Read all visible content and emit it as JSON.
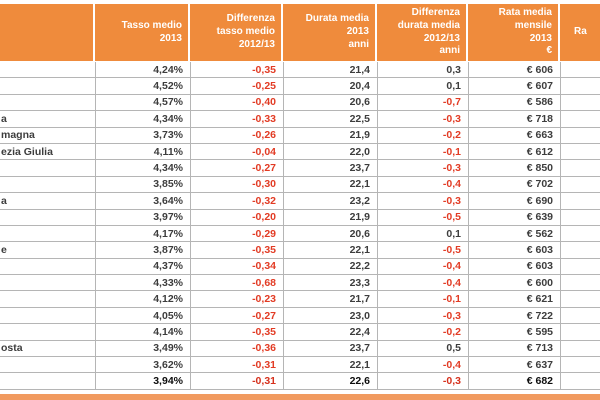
{
  "accent_colors": {
    "header_orange": "#ef8b3c",
    "negative_red": "#e23b24",
    "grid_gray": "#b5b5b5"
  },
  "table": {
    "headers": {
      "region": "",
      "tasso": "Tasso medio\n2013",
      "diff_tasso": "Differenza\ntasso medio\n2012/13",
      "durata": "Durata media\n2013\nanni",
      "diff_durata": "Differenza\ndurata media\n2012/13\nanni",
      "rata": "Rata media\nmensile\n2013\n€",
      "last_partial": "Ra"
    },
    "rows": [
      {
        "region": "",
        "tasso": "4,24%",
        "diff_tasso": "-0,35",
        "durata": "21,4",
        "diff_durata": "0,3",
        "rata": "€ 606"
      },
      {
        "region": "",
        "tasso": "4,52%",
        "diff_tasso": "-0,25",
        "durata": "20,4",
        "diff_durata": "0,1",
        "rata": "€ 607"
      },
      {
        "region": "",
        "tasso": "4,57%",
        "diff_tasso": "-0,40",
        "durata": "20,6",
        "diff_durata": "-0,7",
        "rata": "€ 586"
      },
      {
        "region": "a",
        "tasso": "4,34%",
        "diff_tasso": "-0,33",
        "durata": "22,5",
        "diff_durata": "-0,3",
        "rata": "€ 718"
      },
      {
        "region": "magna",
        "tasso": "3,73%",
        "diff_tasso": "-0,26",
        "durata": "21,9",
        "diff_durata": "-0,2",
        "rata": "€ 663"
      },
      {
        "region": "ezia Giulia",
        "tasso": "4,11%",
        "diff_tasso": "-0,04",
        "durata": "22,0",
        "diff_durata": "-0,1",
        "rata": "€ 612"
      },
      {
        "region": "",
        "tasso": "4,34%",
        "diff_tasso": "-0,27",
        "durata": "23,7",
        "diff_durata": "-0,3",
        "rata": "€ 850"
      },
      {
        "region": "",
        "tasso": "3,85%",
        "diff_tasso": "-0,30",
        "durata": "22,1",
        "diff_durata": "-0,4",
        "rata": "€ 702"
      },
      {
        "region": "a",
        "tasso": "3,64%",
        "diff_tasso": "-0,32",
        "durata": "23,2",
        "diff_durata": "-0,3",
        "rata": "€ 690"
      },
      {
        "region": "",
        "tasso": "3,97%",
        "diff_tasso": "-0,20",
        "durata": "21,9",
        "diff_durata": "-0,5",
        "rata": "€ 639"
      },
      {
        "region": "",
        "tasso": "4,17%",
        "diff_tasso": "-0,29",
        "durata": "20,6",
        "diff_durata": "0,1",
        "rata": "€ 562"
      },
      {
        "region": "e",
        "tasso": "3,87%",
        "diff_tasso": "-0,35",
        "durata": "22,1",
        "diff_durata": "-0,5",
        "rata": "€ 603"
      },
      {
        "region": "",
        "tasso": "4,37%",
        "diff_tasso": "-0,34",
        "durata": "22,2",
        "diff_durata": "-0,4",
        "rata": "€ 603"
      },
      {
        "region": "",
        "tasso": "4,33%",
        "diff_tasso": "-0,68",
        "durata": "23,3",
        "diff_durata": "-0,4",
        "rata": "€ 600"
      },
      {
        "region": "",
        "tasso": "4,12%",
        "diff_tasso": "-0,23",
        "durata": "21,7",
        "diff_durata": "-0,1",
        "rata": "€ 621"
      },
      {
        "region": "",
        "tasso": "4,05%",
        "diff_tasso": "-0,27",
        "durata": "23,0",
        "diff_durata": "-0,3",
        "rata": "€ 722"
      },
      {
        "region": "",
        "tasso": "4,14%",
        "diff_tasso": "-0,35",
        "durata": "22,4",
        "diff_durata": "-0,2",
        "rata": "€ 595"
      },
      {
        "region": "osta",
        "tasso": "3,49%",
        "diff_tasso": "-0,36",
        "durata": "23,7",
        "diff_durata": "0,5",
        "rata": "€ 713"
      },
      {
        "region": "",
        "tasso": "3,62%",
        "diff_tasso": "-0,31",
        "durata": "22,1",
        "diff_durata": "-0,4",
        "rata": "€ 637"
      }
    ],
    "total_row": {
      "region": "",
      "tasso": "3,94%",
      "diff_tasso": "-0,31",
      "durata": "22,6",
      "diff_durata": "-0,3",
      "rata": "€ 682"
    }
  }
}
